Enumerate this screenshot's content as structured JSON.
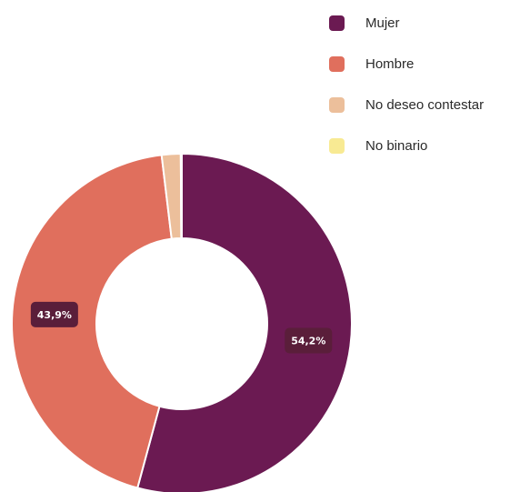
{
  "chart_data": {
    "type": "pie",
    "variant": "donut",
    "legend_position": "top-right",
    "categories": [
      "Mujer",
      "Hombre",
      "No deseo contestar",
      "No binario"
    ],
    "values": [
      54.2,
      43.9,
      1.8,
      0.1
    ],
    "value_labels": [
      "54,2%",
      "43,9%",
      "",
      ""
    ],
    "colors": [
      "#6b1a52",
      "#e06f5d",
      "#ecbf9b",
      "#f8ea93"
    ],
    "data_label_background": "#5a1e3a"
  }
}
